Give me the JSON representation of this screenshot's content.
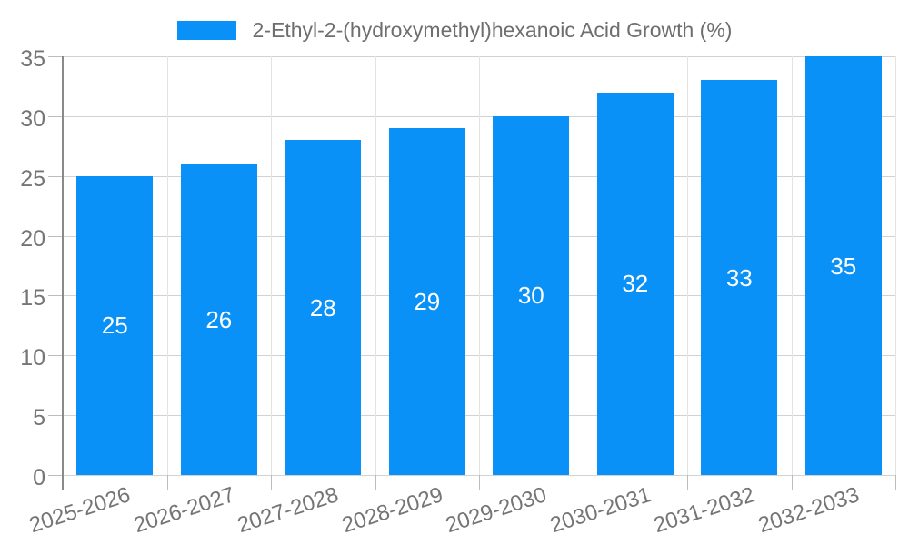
{
  "chart_data": {
    "type": "bar",
    "title": "2-Ethyl-2-(hydroxymethyl)hexanoic Acid Growth (%)",
    "legend": {
      "position": "top",
      "label": "2-Ethyl-2-(hydroxymethyl)hexanoic Acid Growth (%)"
    },
    "categories": [
      "2025-2026",
      "2026-2027",
      "2027-2028",
      "2028-2029",
      "2029-2030",
      "2030-2031",
      "2031-2032",
      "2032-2033"
    ],
    "series": [
      {
        "name": "2-Ethyl-2-(hydroxymethyl)hexanoic Acid Growth (%)",
        "values": [
          25,
          26,
          28,
          29,
          30,
          32,
          33,
          35
        ]
      }
    ],
    "value_labels": [
      "25",
      "26",
      "28",
      "29",
      "30",
      "32",
      "33",
      "35"
    ],
    "value_labels_inside_bars": true,
    "xlabel": "",
    "ylabel": "",
    "ylim": [
      0,
      35
    ],
    "yticks": [
      0,
      5,
      10,
      15,
      20,
      25,
      30,
      35
    ],
    "grid": true,
    "x_label_rotation_deg": -18,
    "colors": {
      "bar": "#0A91F7",
      "value_label": "#FFFFFF",
      "gridline": "#D2D2D2",
      "boundary_gridline": "#E3E3E3",
      "axis_line": "#8A8A8A",
      "tick_mark": "#BDBDBD",
      "tick_label": "#757575",
      "legend_text": "#6E6E6E",
      "background": "#FFFFFF"
    }
  }
}
